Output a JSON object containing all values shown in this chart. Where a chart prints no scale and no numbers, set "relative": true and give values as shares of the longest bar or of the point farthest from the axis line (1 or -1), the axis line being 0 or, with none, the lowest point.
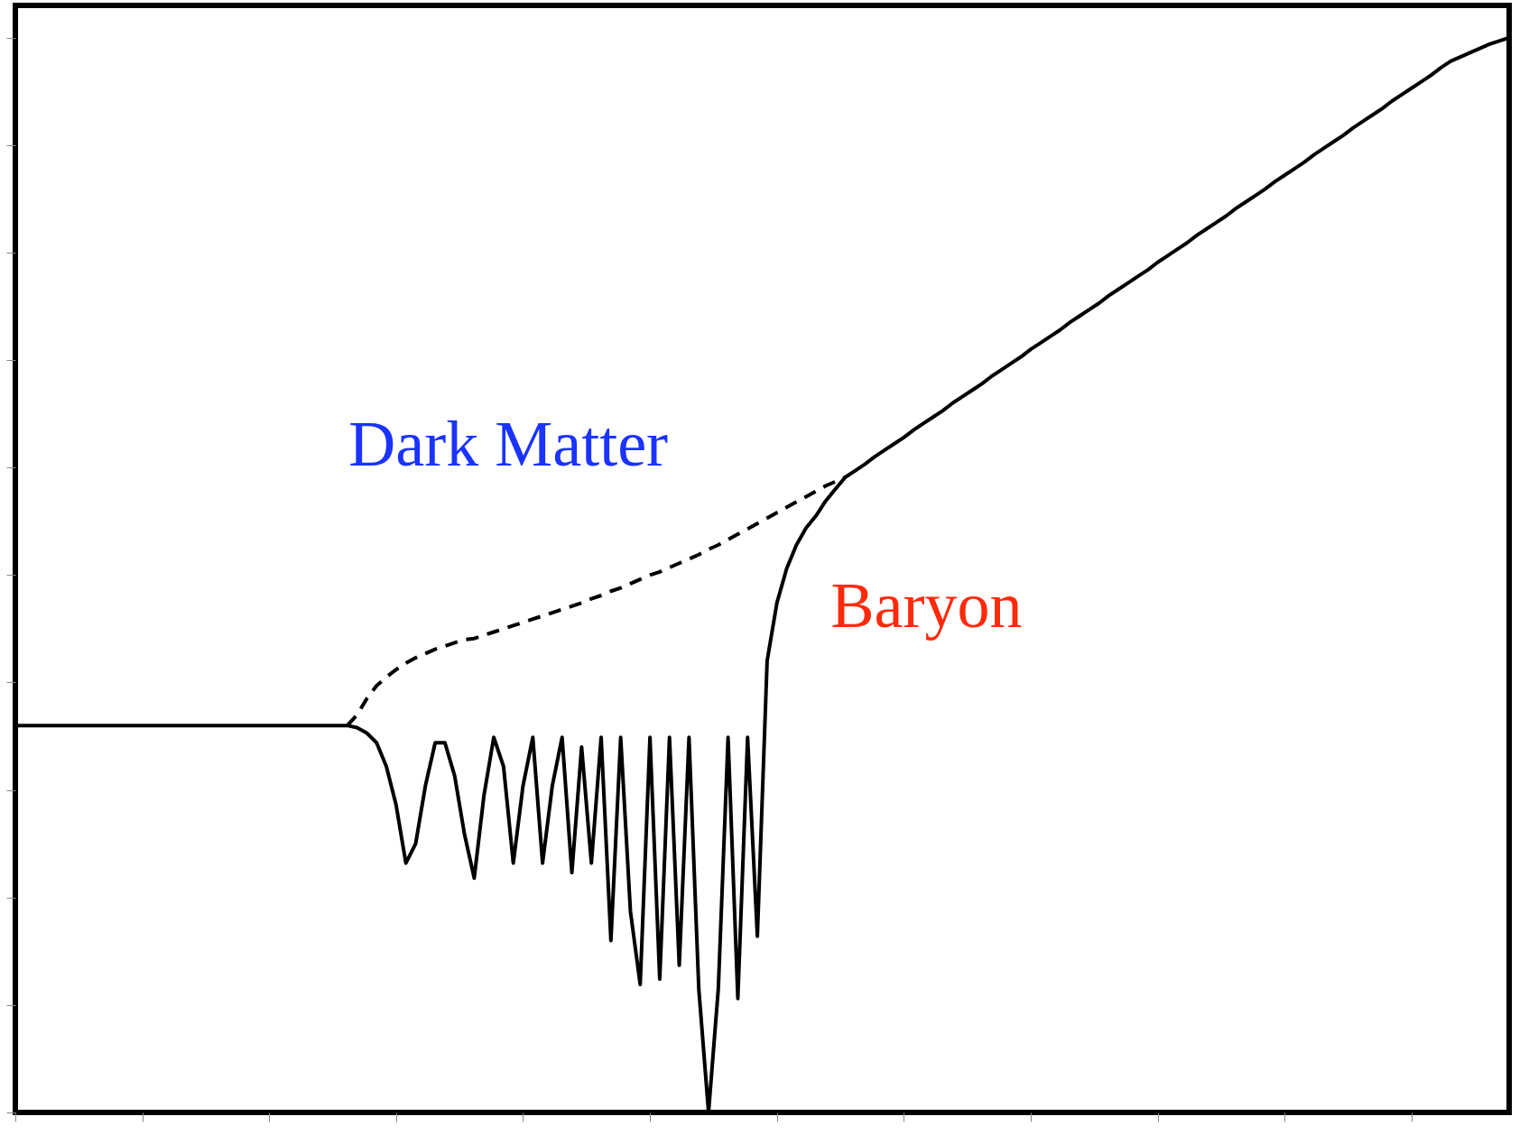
{
  "chart_data": {
    "type": "line",
    "relative": true,
    "tick_labels": false,
    "categories": [
      null,
      null,
      null,
      null,
      null,
      null,
      null,
      null,
      null,
      null,
      null,
      null,
      null,
      null,
      null,
      null,
      null,
      null,
      null,
      null,
      null,
      null,
      null,
      null,
      null,
      null,
      null,
      null,
      null,
      null,
      null,
      null,
      null,
      null,
      null,
      null,
      null,
      null,
      null,
      null,
      null,
      null,
      null,
      null,
      null,
      null,
      null,
      null,
      null,
      null,
      null,
      null,
      null,
      null,
      null,
      null,
      null,
      null,
      null,
      null,
      null,
      null,
      null,
      null,
      null,
      null,
      null,
      null,
      null,
      null,
      null,
      null,
      null,
      null,
      null,
      null,
      null,
      null,
      null,
      null,
      null,
      null,
      null,
      null,
      null,
      null,
      null,
      null,
      null,
      null,
      null,
      null,
      null,
      null,
      null,
      null,
      null,
      null,
      null,
      null,
      null,
      null,
      null,
      null,
      null,
      null,
      null,
      null,
      null,
      null,
      null,
      null,
      null,
      null,
      null,
      null,
      null,
      null,
      null,
      null,
      null,
      null,
      null,
      null,
      null,
      null,
      null,
      null,
      null,
      null,
      null,
      null,
      null,
      null,
      null,
      null,
      null,
      null,
      null,
      null,
      null,
      null,
      null,
      null,
      null,
      null,
      null,
      null,
      null,
      null,
      null,
      null,
      null,
      null
    ],
    "series": [
      {
        "name": "Dark Matter",
        "color": "#000000",
        "line_style": "dashed",
        "values": [
          null,
          null,
          null,
          null,
          null,
          null,
          null,
          null,
          null,
          null,
          null,
          null,
          null,
          null,
          null,
          null,
          null,
          null,
          null,
          null,
          null,
          null,
          null,
          null,
          null,
          null,
          null,
          null,
          null,
          null,
          null,
          null,
          null,
          null,
          0.36,
          0.37,
          0.385,
          0.397,
          0.405,
          0.412,
          0.418,
          0.423,
          0.427,
          0.431,
          0.434,
          0.437,
          0.44,
          0.441,
          0.444,
          0.447,
          0.45,
          0.453,
          0.456,
          0.459,
          0.462,
          0.465,
          0.468,
          0.471,
          0.474,
          0.478,
          0.481,
          0.485,
          0.488,
          0.492,
          0.496,
          0.5,
          0.503,
          0.507,
          0.511,
          0.515,
          0.519,
          0.524,
          0.528,
          0.533,
          0.538,
          0.543,
          0.548,
          0.553,
          0.558,
          0.563,
          0.568,
          0.573,
          0.578,
          0.583,
          0.587,
          0.591,
          null,
          null,
          null,
          null,
          null,
          null,
          null,
          null,
          null,
          null,
          null,
          null,
          null,
          null,
          null,
          null,
          null,
          null,
          null,
          null,
          null,
          null,
          null,
          null,
          null,
          null,
          null,
          null,
          null,
          null,
          null,
          null,
          null,
          null,
          null,
          null,
          null,
          null,
          null,
          null,
          null,
          null,
          null,
          null,
          null,
          null,
          null,
          null,
          null,
          null,
          null,
          null,
          null,
          null,
          null,
          null,
          null,
          null,
          null,
          null,
          null,
          null,
          null,
          null,
          null,
          null,
          null,
          null
        ]
      },
      {
        "name": "Baryon",
        "color": "#000000",
        "line_style": "solid",
        "values": [
          0.36,
          0.36,
          0.36,
          0.36,
          0.36,
          0.36,
          0.36,
          0.36,
          0.36,
          0.36,
          0.36,
          0.36,
          0.36,
          0.36,
          0.36,
          0.36,
          0.36,
          0.36,
          0.36,
          0.36,
          0.36,
          0.36,
          0.36,
          0.36,
          0.36,
          0.36,
          0.36,
          0.36,
          0.36,
          0.36,
          0.36,
          0.36,
          0.36,
          0.36,
          0.36,
          0.358,
          0.353,
          0.344,
          0.322,
          0.286,
          0.232,
          0.25,
          0.304,
          0.344,
          0.344,
          0.313,
          0.259,
          0.218,
          0.295,
          0.349,
          0.322,
          0.232,
          0.304,
          0.349,
          0.232,
          0.304,
          0.349,
          0.223,
          0.34,
          0.232,
          0.349,
          0.16,
          0.349,
          0.187,
          0.119,
          0.349,
          0.124,
          0.349,
          0.137,
          0.349,
          0.115,
          0,
          0.115,
          0.349,
          0.106,
          0.349,
          0.164,
          0.42,
          0.474,
          0.506,
          0.528,
          0.544,
          0.555,
          0.569,
          0.58,
          0.591,
          0.597,
          0.603,
          0.61,
          0.616,
          0.622,
          0.628,
          0.635,
          0.641,
          0.647,
          0.653,
          0.66,
          0.666,
          0.672,
          0.678,
          0.685,
          0.691,
          0.697,
          0.703,
          0.71,
          0.716,
          0.722,
          0.728,
          0.735,
          0.741,
          0.747,
          0.753,
          0.76,
          0.766,
          0.772,
          0.778,
          0.784,
          0.791,
          0.797,
          0.803,
          0.809,
          0.816,
          0.822,
          0.828,
          0.834,
          0.841,
          0.847,
          0.853,
          0.859,
          0.866,
          0.872,
          0.878,
          0.884,
          0.891,
          0.897,
          0.903,
          0.909,
          0.916,
          0.922,
          0.928,
          0.934,
          0.941,
          0.947,
          0.953,
          0.959,
          0.965,
          0.972,
          0.978,
          0.982,
          0.986,
          0.99,
          0.994,
          0.997,
          1.0
        ]
      }
    ]
  }
}
